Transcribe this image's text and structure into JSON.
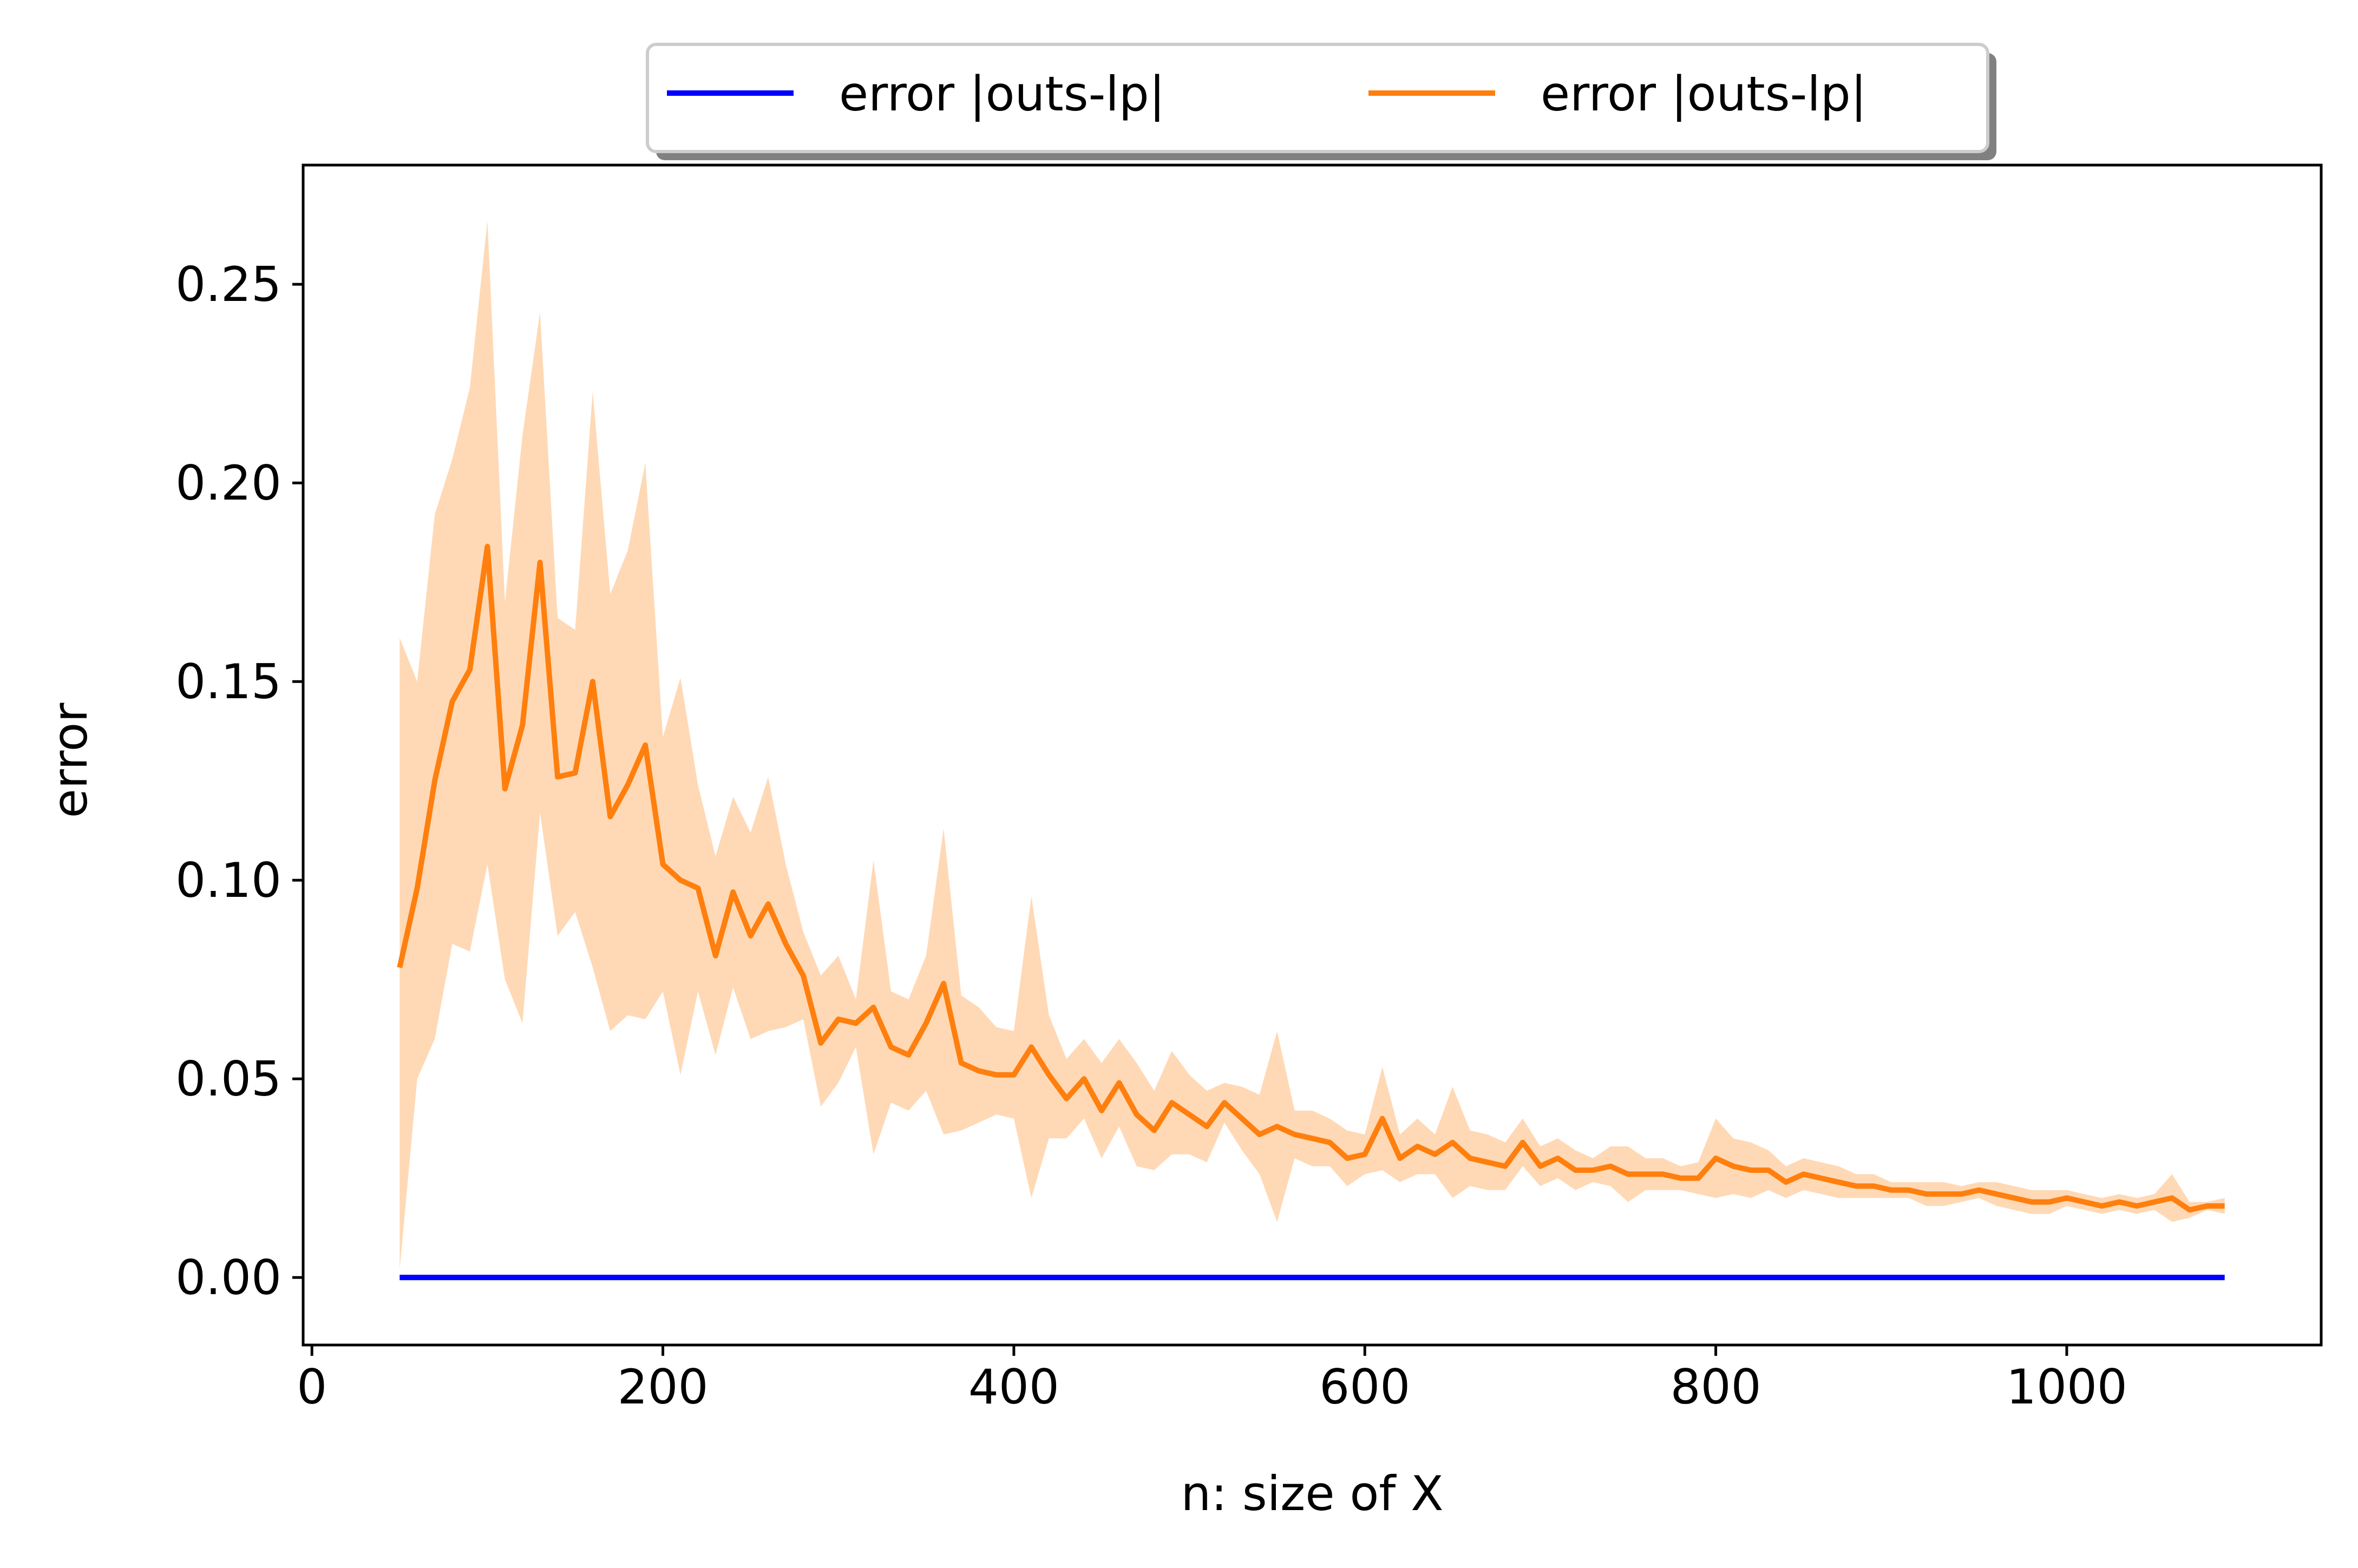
{
  "chart_data": {
    "type": "line",
    "title": "",
    "xlabel": "n: size of X",
    "ylabel": "error",
    "xlim": [
      -5,
      1145
    ],
    "ylim": [
      -0.017,
      0.28
    ],
    "xticks": [
      0,
      200,
      400,
      600,
      800,
      1000
    ],
    "xtick_labels": [
      "0",
      "200",
      "400",
      "600",
      "800",
      "1000"
    ],
    "yticks": [
      0.0,
      0.05,
      0.1,
      0.15,
      0.2,
      0.25
    ],
    "ytick_labels": [
      "0.00",
      "0.05",
      "0.10",
      "0.15",
      "0.20",
      "0.25"
    ],
    "grid": false,
    "legend": {
      "placement": "upper-center-outside",
      "columns": 2,
      "shadow": true
    },
    "x": [
      50,
      60,
      70,
      80,
      90,
      100,
      110,
      120,
      130,
      140,
      150,
      160,
      170,
      180,
      190,
      200,
      210,
      220,
      230,
      240,
      250,
      260,
      270,
      280,
      290,
      300,
      310,
      320,
      330,
      340,
      350,
      360,
      370,
      380,
      390,
      400,
      410,
      420,
      430,
      440,
      450,
      460,
      470,
      480,
      490,
      500,
      510,
      520,
      530,
      540,
      550,
      560,
      570,
      580,
      590,
      600,
      610,
      620,
      630,
      640,
      650,
      660,
      670,
      680,
      690,
      700,
      710,
      720,
      730,
      740,
      750,
      760,
      770,
      780,
      790,
      800,
      810,
      820,
      830,
      840,
      850,
      860,
      870,
      880,
      890,
      900,
      910,
      920,
      930,
      940,
      950,
      960,
      970,
      980,
      990,
      1000,
      1010,
      1020,
      1030,
      1040,
      1050,
      1060,
      1070,
      1080,
      1090
    ],
    "series": [
      {
        "name": "error |outs-lp|",
        "color": "#0000ff",
        "values": [
          0,
          0,
          0,
          0,
          0,
          0,
          0,
          0,
          0,
          0,
          0,
          0,
          0,
          0,
          0,
          0,
          0,
          0,
          0,
          0,
          0,
          0,
          0,
          0,
          0,
          0,
          0,
          0,
          0,
          0,
          0,
          0,
          0,
          0,
          0,
          0,
          0,
          0,
          0,
          0,
          0,
          0,
          0,
          0,
          0,
          0,
          0,
          0,
          0,
          0,
          0,
          0,
          0,
          0,
          0,
          0,
          0,
          0,
          0,
          0,
          0,
          0,
          0,
          0,
          0,
          0,
          0,
          0,
          0,
          0,
          0,
          0,
          0,
          0,
          0,
          0,
          0,
          0,
          0,
          0,
          0,
          0,
          0,
          0,
          0,
          0,
          0,
          0,
          0,
          0,
          0,
          0,
          0,
          0,
          0,
          0,
          0,
          0,
          0,
          0,
          0,
          0,
          0,
          0,
          0
        ]
      },
      {
        "name": "error |outs-lp|",
        "color": "#ff7f0e",
        "band_color": "#ffd9b5",
        "values": [
          0.078,
          0.098,
          0.125,
          0.145,
          0.153,
          0.184,
          0.123,
          0.139,
          0.18,
          0.126,
          0.127,
          0.15,
          0.116,
          0.124,
          0.134,
          0.104,
          0.1,
          0.098,
          0.081,
          0.097,
          0.086,
          0.094,
          0.084,
          0.076,
          0.059,
          0.065,
          0.064,
          0.068,
          0.058,
          0.056,
          0.064,
          0.074,
          0.054,
          0.052,
          0.051,
          0.051,
          0.058,
          0.051,
          0.045,
          0.05,
          0.042,
          0.049,
          0.041,
          0.037,
          0.044,
          0.041,
          0.038,
          0.044,
          0.04,
          0.036,
          0.038,
          0.036,
          0.035,
          0.034,
          0.03,
          0.031,
          0.04,
          0.03,
          0.033,
          0.031,
          0.034,
          0.03,
          0.029,
          0.028,
          0.034,
          0.028,
          0.03,
          0.027,
          0.027,
          0.028,
          0.026,
          0.026,
          0.026,
          0.025,
          0.025,
          0.03,
          0.028,
          0.027,
          0.027,
          0.024,
          0.026,
          0.025,
          0.024,
          0.023,
          0.023,
          0.022,
          0.022,
          0.021,
          0.021,
          0.021,
          0.022,
          0.021,
          0.02,
          0.019,
          0.019,
          0.02,
          0.019,
          0.018,
          0.019,
          0.018,
          0.019,
          0.02,
          0.017,
          0.018,
          0.018
        ],
        "upper": [
          0.161,
          0.15,
          0.192,
          0.206,
          0.224,
          0.266,
          0.17,
          0.212,
          0.243,
          0.166,
          0.163,
          0.223,
          0.172,
          0.183,
          0.205,
          0.136,
          0.151,
          0.124,
          0.106,
          0.121,
          0.112,
          0.126,
          0.104,
          0.087,
          0.076,
          0.081,
          0.07,
          0.105,
          0.072,
          0.07,
          0.081,
          0.113,
          0.071,
          0.068,
          0.063,
          0.062,
          0.096,
          0.066,
          0.055,
          0.06,
          0.054,
          0.06,
          0.054,
          0.047,
          0.057,
          0.051,
          0.047,
          0.049,
          0.048,
          0.046,
          0.062,
          0.042,
          0.042,
          0.04,
          0.037,
          0.036,
          0.053,
          0.036,
          0.04,
          0.036,
          0.048,
          0.037,
          0.036,
          0.034,
          0.04,
          0.033,
          0.035,
          0.032,
          0.03,
          0.033,
          0.033,
          0.03,
          0.03,
          0.028,
          0.029,
          0.04,
          0.035,
          0.034,
          0.032,
          0.028,
          0.03,
          0.029,
          0.028,
          0.026,
          0.026,
          0.024,
          0.024,
          0.024,
          0.024,
          0.023,
          0.024,
          0.024,
          0.023,
          0.022,
          0.022,
          0.022,
          0.021,
          0.02,
          0.021,
          0.02,
          0.021,
          0.026,
          0.019,
          0.019,
          0.02
        ],
        "lower": [
          0.002,
          0.05,
          0.06,
          0.084,
          0.082,
          0.104,
          0.075,
          0.064,
          0.117,
          0.086,
          0.092,
          0.078,
          0.062,
          0.066,
          0.065,
          0.072,
          0.051,
          0.072,
          0.056,
          0.073,
          0.06,
          0.062,
          0.063,
          0.065,
          0.043,
          0.049,
          0.058,
          0.031,
          0.044,
          0.042,
          0.047,
          0.036,
          0.037,
          0.039,
          0.041,
          0.04,
          0.02,
          0.035,
          0.035,
          0.04,
          0.03,
          0.038,
          0.028,
          0.027,
          0.031,
          0.031,
          0.029,
          0.039,
          0.032,
          0.026,
          0.014,
          0.03,
          0.028,
          0.028,
          0.023,
          0.026,
          0.027,
          0.024,
          0.026,
          0.026,
          0.02,
          0.023,
          0.022,
          0.022,
          0.028,
          0.023,
          0.025,
          0.022,
          0.024,
          0.023,
          0.019,
          0.022,
          0.022,
          0.022,
          0.021,
          0.02,
          0.021,
          0.02,
          0.022,
          0.02,
          0.022,
          0.021,
          0.02,
          0.02,
          0.02,
          0.02,
          0.02,
          0.018,
          0.018,
          0.019,
          0.02,
          0.018,
          0.017,
          0.016,
          0.016,
          0.018,
          0.017,
          0.016,
          0.017,
          0.016,
          0.017,
          0.014,
          0.015,
          0.017,
          0.016
        ]
      }
    ]
  }
}
